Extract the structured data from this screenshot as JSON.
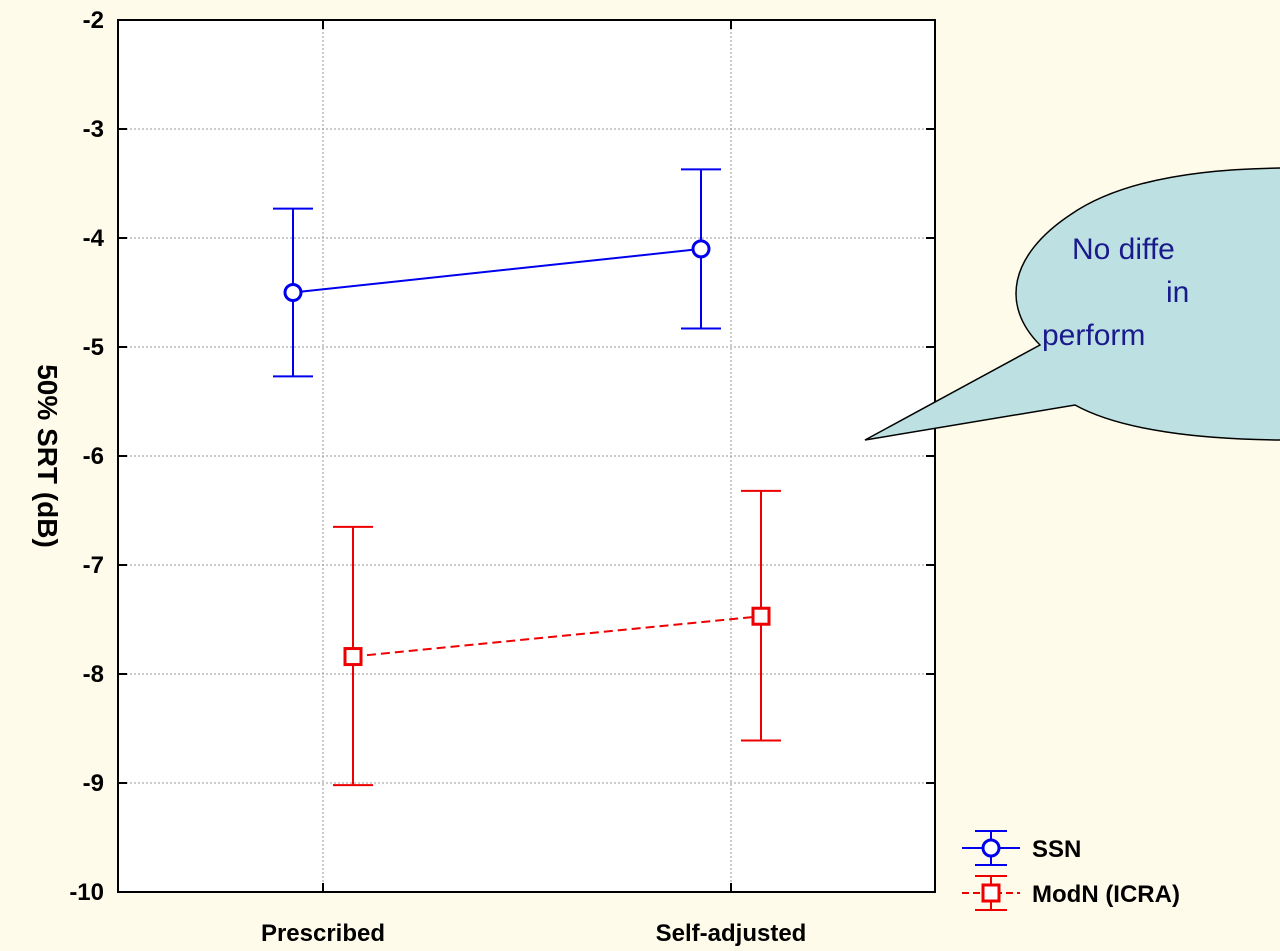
{
  "chart_data": {
    "type": "line",
    "title": "",
    "xlabel": "",
    "ylabel": "50% SRT (dB)",
    "categories": [
      "Prescribed",
      "Self-adjusted"
    ],
    "ylim": [
      -10,
      -2
    ],
    "yticks": [
      -2,
      -3,
      -4,
      -5,
      -6,
      -7,
      -8,
      -9,
      -10
    ],
    "ytick_labels": [
      "-2",
      "-3",
      "-4",
      "-5",
      "-6",
      "-7",
      "-8",
      "-9",
      "-10"
    ],
    "grid": true,
    "legend_position": "bottom-right",
    "series": [
      {
        "name": "SSN",
        "color": "#0000ee",
        "marker": "circle",
        "line_style": "solid",
        "values": [
          -4.5,
          -4.1
        ],
        "error_low": [
          -5.27,
          -4.83
        ],
        "error_high": [
          -3.73,
          -3.37
        ]
      },
      {
        "name": "ModN (ICRA)",
        "color": "#ee0000",
        "marker": "square",
        "line_style": "dashed",
        "values": [
          -7.84,
          -7.47
        ],
        "error_low": [
          -9.02,
          -8.61
        ],
        "error_high": [
          -6.65,
          -6.32
        ]
      }
    ],
    "annotation": {
      "lines": [
        "No diffe",
        "in",
        "perform"
      ],
      "fill": "#bde1e2",
      "stroke": "#000000"
    }
  }
}
